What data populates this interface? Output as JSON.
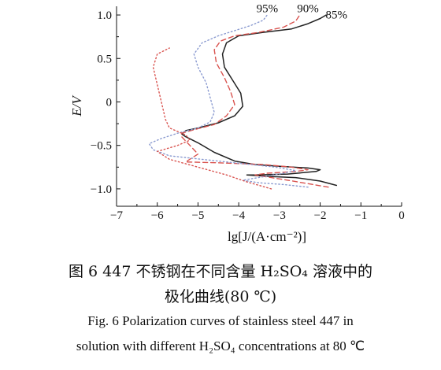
{
  "figure": {
    "caption_cn_line1": "图 6   447 不锈钢在不同含量 H₂SO₄ 溶液中的",
    "caption_cn_line2": "极化曲线(80 ℃)",
    "caption_en_line1": "Fig. 6  Polarization curves of stainless steel 447 in",
    "caption_en_line2": "solution with different H₂SO₄ concentrations at 80 ℃"
  },
  "chart_data": {
    "type": "line",
    "xlabel": "lg[J/(A·cm⁻²)]",
    "ylabel": "E/V",
    "xlim": [
      -7,
      0
    ],
    "ylim": [
      -1.2,
      1.1
    ],
    "xticks": [
      -7,
      -6,
      -5,
      -4,
      -3,
      -2,
      -1,
      0
    ],
    "yticks": [
      -1.0,
      -0.5,
      0,
      0.5,
      1.0
    ],
    "ytick_labels": [
      "−1.0",
      "−0.5",
      "0",
      "0.5",
      "1.0"
    ],
    "grid": false,
    "series": [
      {
        "name": "85%",
        "style": "solid",
        "color": "#222222",
        "points": [
          [
            -1.6,
            -0.96
          ],
          [
            -2.0,
            -0.91
          ],
          [
            -2.6,
            -0.87
          ],
          [
            -3.1,
            -0.86
          ],
          [
            -3.5,
            -0.85
          ],
          [
            -3.8,
            -0.84
          ],
          [
            -3.6,
            -0.84
          ],
          [
            -2.8,
            -0.83
          ],
          [
            -2.1,
            -0.8
          ],
          [
            -2.0,
            -0.78
          ],
          [
            -2.3,
            -0.76
          ],
          [
            -3.0,
            -0.74
          ],
          [
            -3.6,
            -0.72
          ],
          [
            -4.1,
            -0.68
          ],
          [
            -4.6,
            -0.58
          ],
          [
            -5.0,
            -0.47
          ],
          [
            -5.3,
            -0.4
          ],
          [
            -5.4,
            -0.37
          ],
          [
            -5.3,
            -0.33
          ],
          [
            -5.0,
            -0.3
          ],
          [
            -4.5,
            -0.24
          ],
          [
            -4.1,
            -0.16
          ],
          [
            -3.9,
            -0.05
          ],
          [
            -3.95,
            0.1
          ],
          [
            -4.15,
            0.25
          ],
          [
            -4.35,
            0.4
          ],
          [
            -4.4,
            0.55
          ],
          [
            -4.3,
            0.68
          ],
          [
            -4.0,
            0.76
          ],
          [
            -3.4,
            0.8
          ],
          [
            -2.7,
            0.84
          ],
          [
            -2.3,
            0.9
          ],
          [
            -2.0,
            0.96
          ],
          [
            -1.85,
            1.0
          ]
        ]
      },
      {
        "name": "90%",
        "style": "dashed",
        "color": "#d9534f",
        "points": [
          [
            -1.8,
            -0.98
          ],
          [
            -2.3,
            -0.94
          ],
          [
            -2.8,
            -0.9
          ],
          [
            -3.2,
            -0.87
          ],
          [
            -3.6,
            -0.84
          ],
          [
            -3.3,
            -0.82
          ],
          [
            -2.6,
            -0.8
          ],
          [
            -2.3,
            -0.78
          ],
          [
            -2.7,
            -0.75
          ],
          [
            -3.4,
            -0.72
          ],
          [
            -4.5,
            -0.7
          ],
          [
            -5.3,
            -0.69
          ],
          [
            -5.0,
            -0.6
          ],
          [
            -5.2,
            -0.5
          ],
          [
            -5.4,
            -0.4
          ],
          [
            -5.4,
            -0.36
          ],
          [
            -5.1,
            -0.32
          ],
          [
            -4.6,
            -0.26
          ],
          [
            -4.3,
            -0.16
          ],
          [
            -4.1,
            -0.03
          ],
          [
            -4.2,
            0.12
          ],
          [
            -4.35,
            0.28
          ],
          [
            -4.55,
            0.45
          ],
          [
            -4.6,
            0.6
          ],
          [
            -4.45,
            0.7
          ],
          [
            -4.1,
            0.76
          ],
          [
            -3.5,
            0.8
          ],
          [
            -2.9,
            0.86
          ],
          [
            -2.6,
            0.93
          ],
          [
            -2.5,
            1.0
          ]
        ]
      },
      {
        "name": "95%",
        "style": "dotted",
        "color": "#8a9ad0",
        "points": [
          [
            -2.3,
            -0.98
          ],
          [
            -2.9,
            -0.95
          ],
          [
            -3.5,
            -0.93
          ],
          [
            -3.9,
            -0.9
          ],
          [
            -3.4,
            -0.86
          ],
          [
            -2.9,
            -0.82
          ],
          [
            -2.6,
            -0.79
          ],
          [
            -3.1,
            -0.75
          ],
          [
            -3.9,
            -0.71
          ],
          [
            -4.9,
            -0.66
          ],
          [
            -5.7,
            -0.62
          ],
          [
            -6.1,
            -0.55
          ],
          [
            -6.2,
            -0.48
          ],
          [
            -5.9,
            -0.42
          ],
          [
            -5.5,
            -0.36
          ],
          [
            -5.0,
            -0.3
          ],
          [
            -4.7,
            -0.23
          ],
          [
            -4.6,
            -0.12
          ],
          [
            -4.7,
            0.05
          ],
          [
            -4.8,
            0.22
          ],
          [
            -5.0,
            0.4
          ],
          [
            -5.1,
            0.55
          ],
          [
            -4.9,
            0.68
          ],
          [
            -4.5,
            0.76
          ],
          [
            -4.1,
            0.82
          ],
          [
            -3.7,
            0.88
          ],
          [
            -3.4,
            0.94
          ],
          [
            -3.3,
            1.0
          ]
        ]
      },
      {
        "name": "",
        "style": "dotted",
        "color": "#d9534f",
        "points": [
          [
            -3.2,
            -1.0
          ],
          [
            -3.8,
            -0.92
          ],
          [
            -4.3,
            -0.84
          ],
          [
            -5.0,
            -0.75
          ],
          [
            -5.7,
            -0.66
          ],
          [
            -6.0,
            -0.57
          ],
          [
            -5.5,
            -0.5
          ],
          [
            -5.2,
            -0.44
          ],
          [
            -5.3,
            -0.38
          ],
          [
            -5.5,
            -0.34
          ],
          [
            -5.7,
            -0.3
          ],
          [
            -5.8,
            -0.2
          ],
          [
            -5.9,
            0.0
          ],
          [
            -6.0,
            0.2
          ],
          [
            -6.1,
            0.4
          ],
          [
            -6.0,
            0.55
          ],
          [
            -5.7,
            0.62
          ]
        ]
      }
    ],
    "curve_labels": [
      {
        "text": "95%",
        "x": -3.3,
        "y": 1.03
      },
      {
        "text": "90%",
        "x": -2.3,
        "y": 1.03
      },
      {
        "text": "85%",
        "x": -1.6,
        "y": 0.96
      }
    ]
  }
}
